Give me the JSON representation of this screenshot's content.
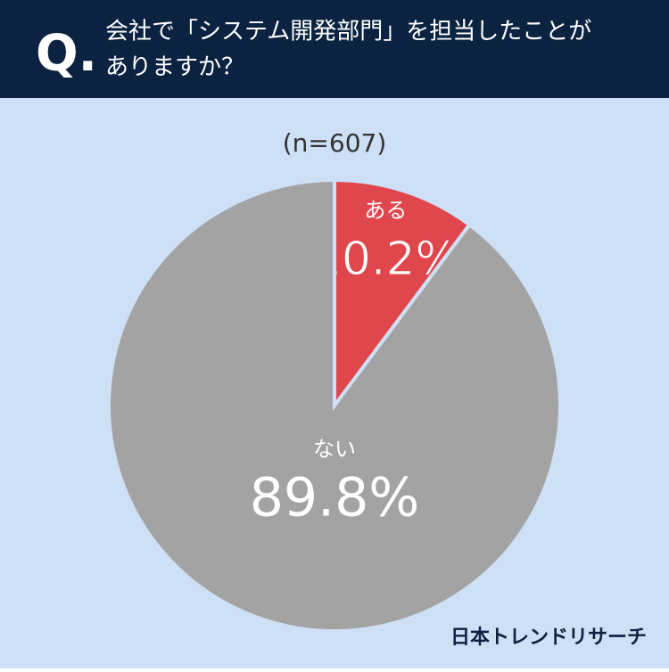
{
  "header": {
    "mark": "Q.",
    "question_lines": [
      "会社で「システム開発部門」を担当したことが",
      "ありますか？"
    ]
  },
  "chart_data": {
    "type": "pie",
    "subtitle": "(n=607)",
    "categories": [
      "ある",
      "ない"
    ],
    "values": [
      10.2,
      89.8
    ],
    "value_labels": [
      "10.2%",
      "89.8%"
    ],
    "colors": [
      "#e0474c",
      "#a3a3a3"
    ]
  },
  "footer": {
    "brand": "日本トレンドリサーチ"
  }
}
